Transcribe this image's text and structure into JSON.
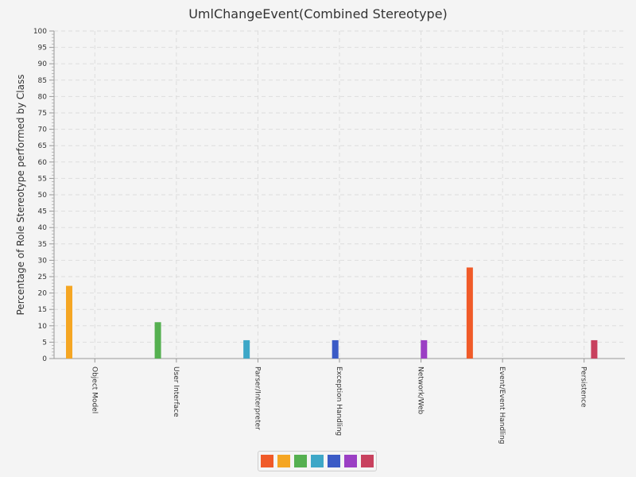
{
  "chart_data": {
    "type": "bar",
    "title": "UmlChangeEvent(Combined Stereotype)",
    "xlabel": "",
    "ylabel": "Percentage of Role Stereotype performed by Class",
    "ylim": [
      0,
      100
    ],
    "y_ticks": [
      0,
      5,
      10,
      15,
      20,
      25,
      30,
      35,
      40,
      45,
      50,
      55,
      60,
      65,
      70,
      75,
      80,
      85,
      90,
      95,
      100
    ],
    "grid": true,
    "legend_position": "bottom-center",
    "categories": [
      "Object Model",
      "User Interface",
      "Parser/Interpreter",
      "Exception Handling",
      "Network/Web",
      "Event/Event Handling",
      "Persistence"
    ],
    "series": [
      {
        "color": "#f05a28",
        "values": [
          0,
          0,
          0,
          0,
          0,
          27.8,
          0
        ]
      },
      {
        "color": "#f5a623",
        "values": [
          22.2,
          0,
          0,
          0,
          0,
          0,
          0
        ]
      },
      {
        "color": "#55b050",
        "values": [
          0,
          11.1,
          0,
          0,
          0,
          0,
          0
        ]
      },
      {
        "color": "#3ea7c7",
        "values": [
          0,
          0,
          5.6,
          0,
          0,
          0,
          0
        ]
      },
      {
        "color": "#3b5bc6",
        "values": [
          0,
          0,
          0,
          5.6,
          0,
          0,
          0
        ]
      },
      {
        "color": "#9b3fc4",
        "values": [
          0,
          0,
          0,
          0,
          5.6,
          0,
          0
        ]
      },
      {
        "color": "#c8415e",
        "values": [
          0,
          0,
          0,
          0,
          0,
          0,
          5.6
        ]
      }
    ]
  }
}
